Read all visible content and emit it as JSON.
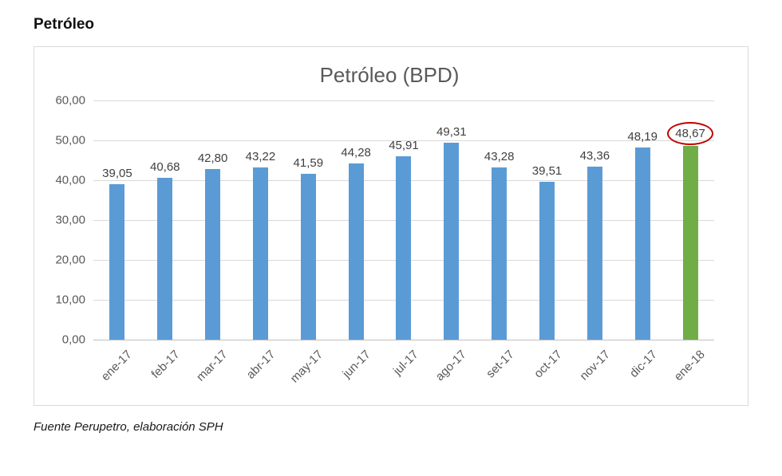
{
  "page": {
    "heading": "Petróleo",
    "source_note": "Fuente Perupetro, elaboración SPH"
  },
  "chart_data": {
    "type": "bar",
    "title": "Petróleo (BPD)",
    "categories": [
      "ene-17",
      "feb-17",
      "mar-17",
      "abr-17",
      "may-17",
      "jun-17",
      "jul-17",
      "ago-17",
      "set-17",
      "oct-17",
      "nov-17",
      "dic-17",
      "ene-18"
    ],
    "values": [
      39.05,
      40.68,
      42.8,
      43.22,
      41.59,
      44.28,
      45.91,
      49.31,
      43.28,
      39.51,
      43.36,
      48.19,
      48.67
    ],
    "value_labels": [
      "39,05",
      "40,68",
      "42,80",
      "43,22",
      "41,59",
      "44,28",
      "45,91",
      "49,31",
      "43,28",
      "39,51",
      "43,36",
      "48,19",
      "48,67"
    ],
    "ylim": [
      0,
      60
    ],
    "y_ticks": [
      "0,00",
      "10,00",
      "20,00",
      "30,00",
      "40,00",
      "50,00",
      "60,00"
    ],
    "bar_color": "#5b9bd5",
    "highlight_color": "#70ad47",
    "highlight_index": 12,
    "annotation": {
      "type": "ellipse",
      "index": 12,
      "color": "#c00000"
    },
    "grid": true,
    "legend": false
  }
}
